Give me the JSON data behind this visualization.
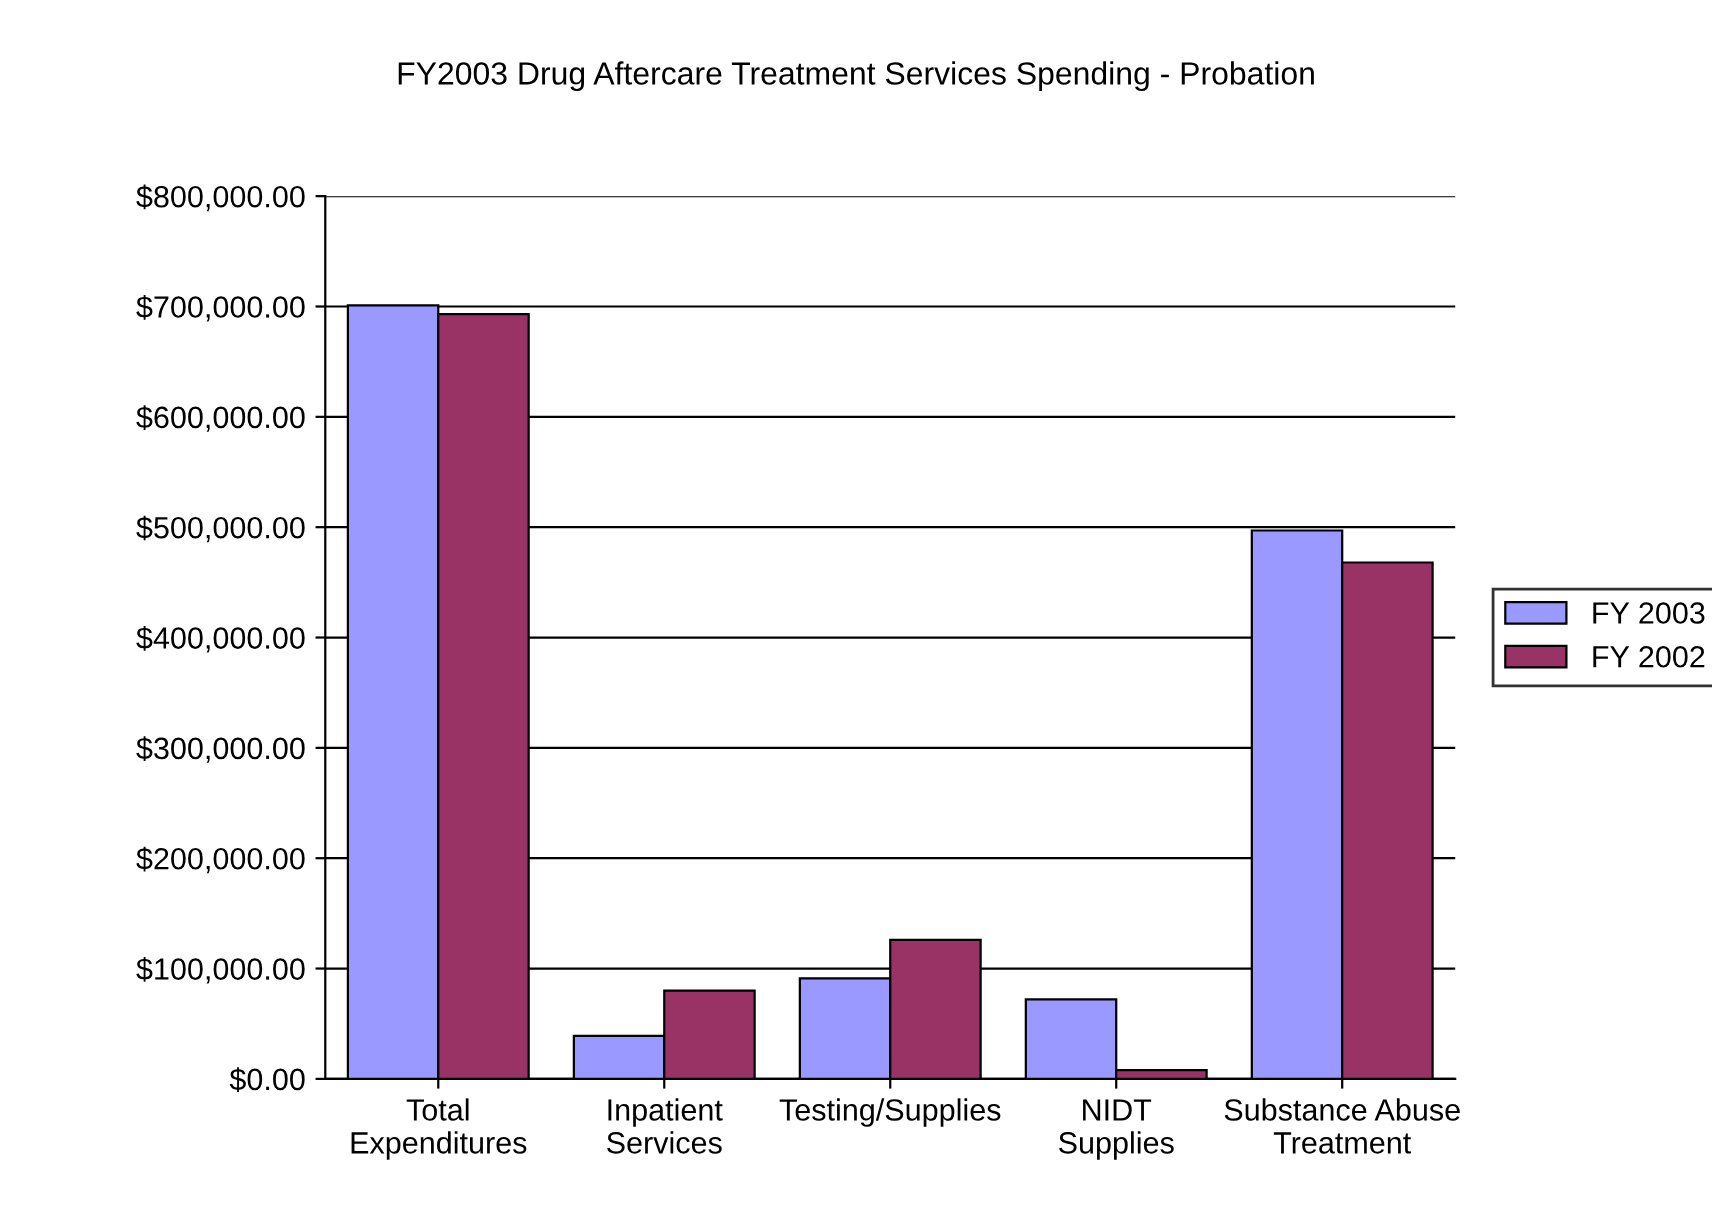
{
  "chart_data": {
    "type": "bar",
    "title": "FY2003 Drug Aftercare Treatment Services Spending - Probation",
    "categories": [
      "Total\nExpenditures",
      "Inpatient\nServices",
      "Testing/Supplies",
      "NIDT\nSupplies",
      "Substance Abuse\nTreatment"
    ],
    "series": [
      {
        "name": "FY 2003",
        "color": "#9999ff",
        "values": [
          701000,
          39000,
          91000,
          72000,
          497000
        ]
      },
      {
        "name": "FY 2002",
        "color": "#993366",
        "values": [
          693000,
          80000,
          126000,
          8000,
          468000
        ]
      }
    ],
    "ylim": [
      0,
      800000
    ],
    "yticks": [
      {
        "value": 0,
        "label": "$0.00"
      },
      {
        "value": 100000,
        "label": "$100,000.00"
      },
      {
        "value": 200000,
        "label": "$200,000.00"
      },
      {
        "value": 300000,
        "label": "$300,000.00"
      },
      {
        "value": 400000,
        "label": "$400,000.00"
      },
      {
        "value": 500000,
        "label": "$500,000.00"
      },
      {
        "value": 600000,
        "label": "$600,000.00"
      },
      {
        "value": 700000,
        "label": "$700,000.00"
      },
      {
        "value": 800000,
        "label": "$800,000.00"
      }
    ],
    "grid": "y",
    "legend": "right"
  }
}
